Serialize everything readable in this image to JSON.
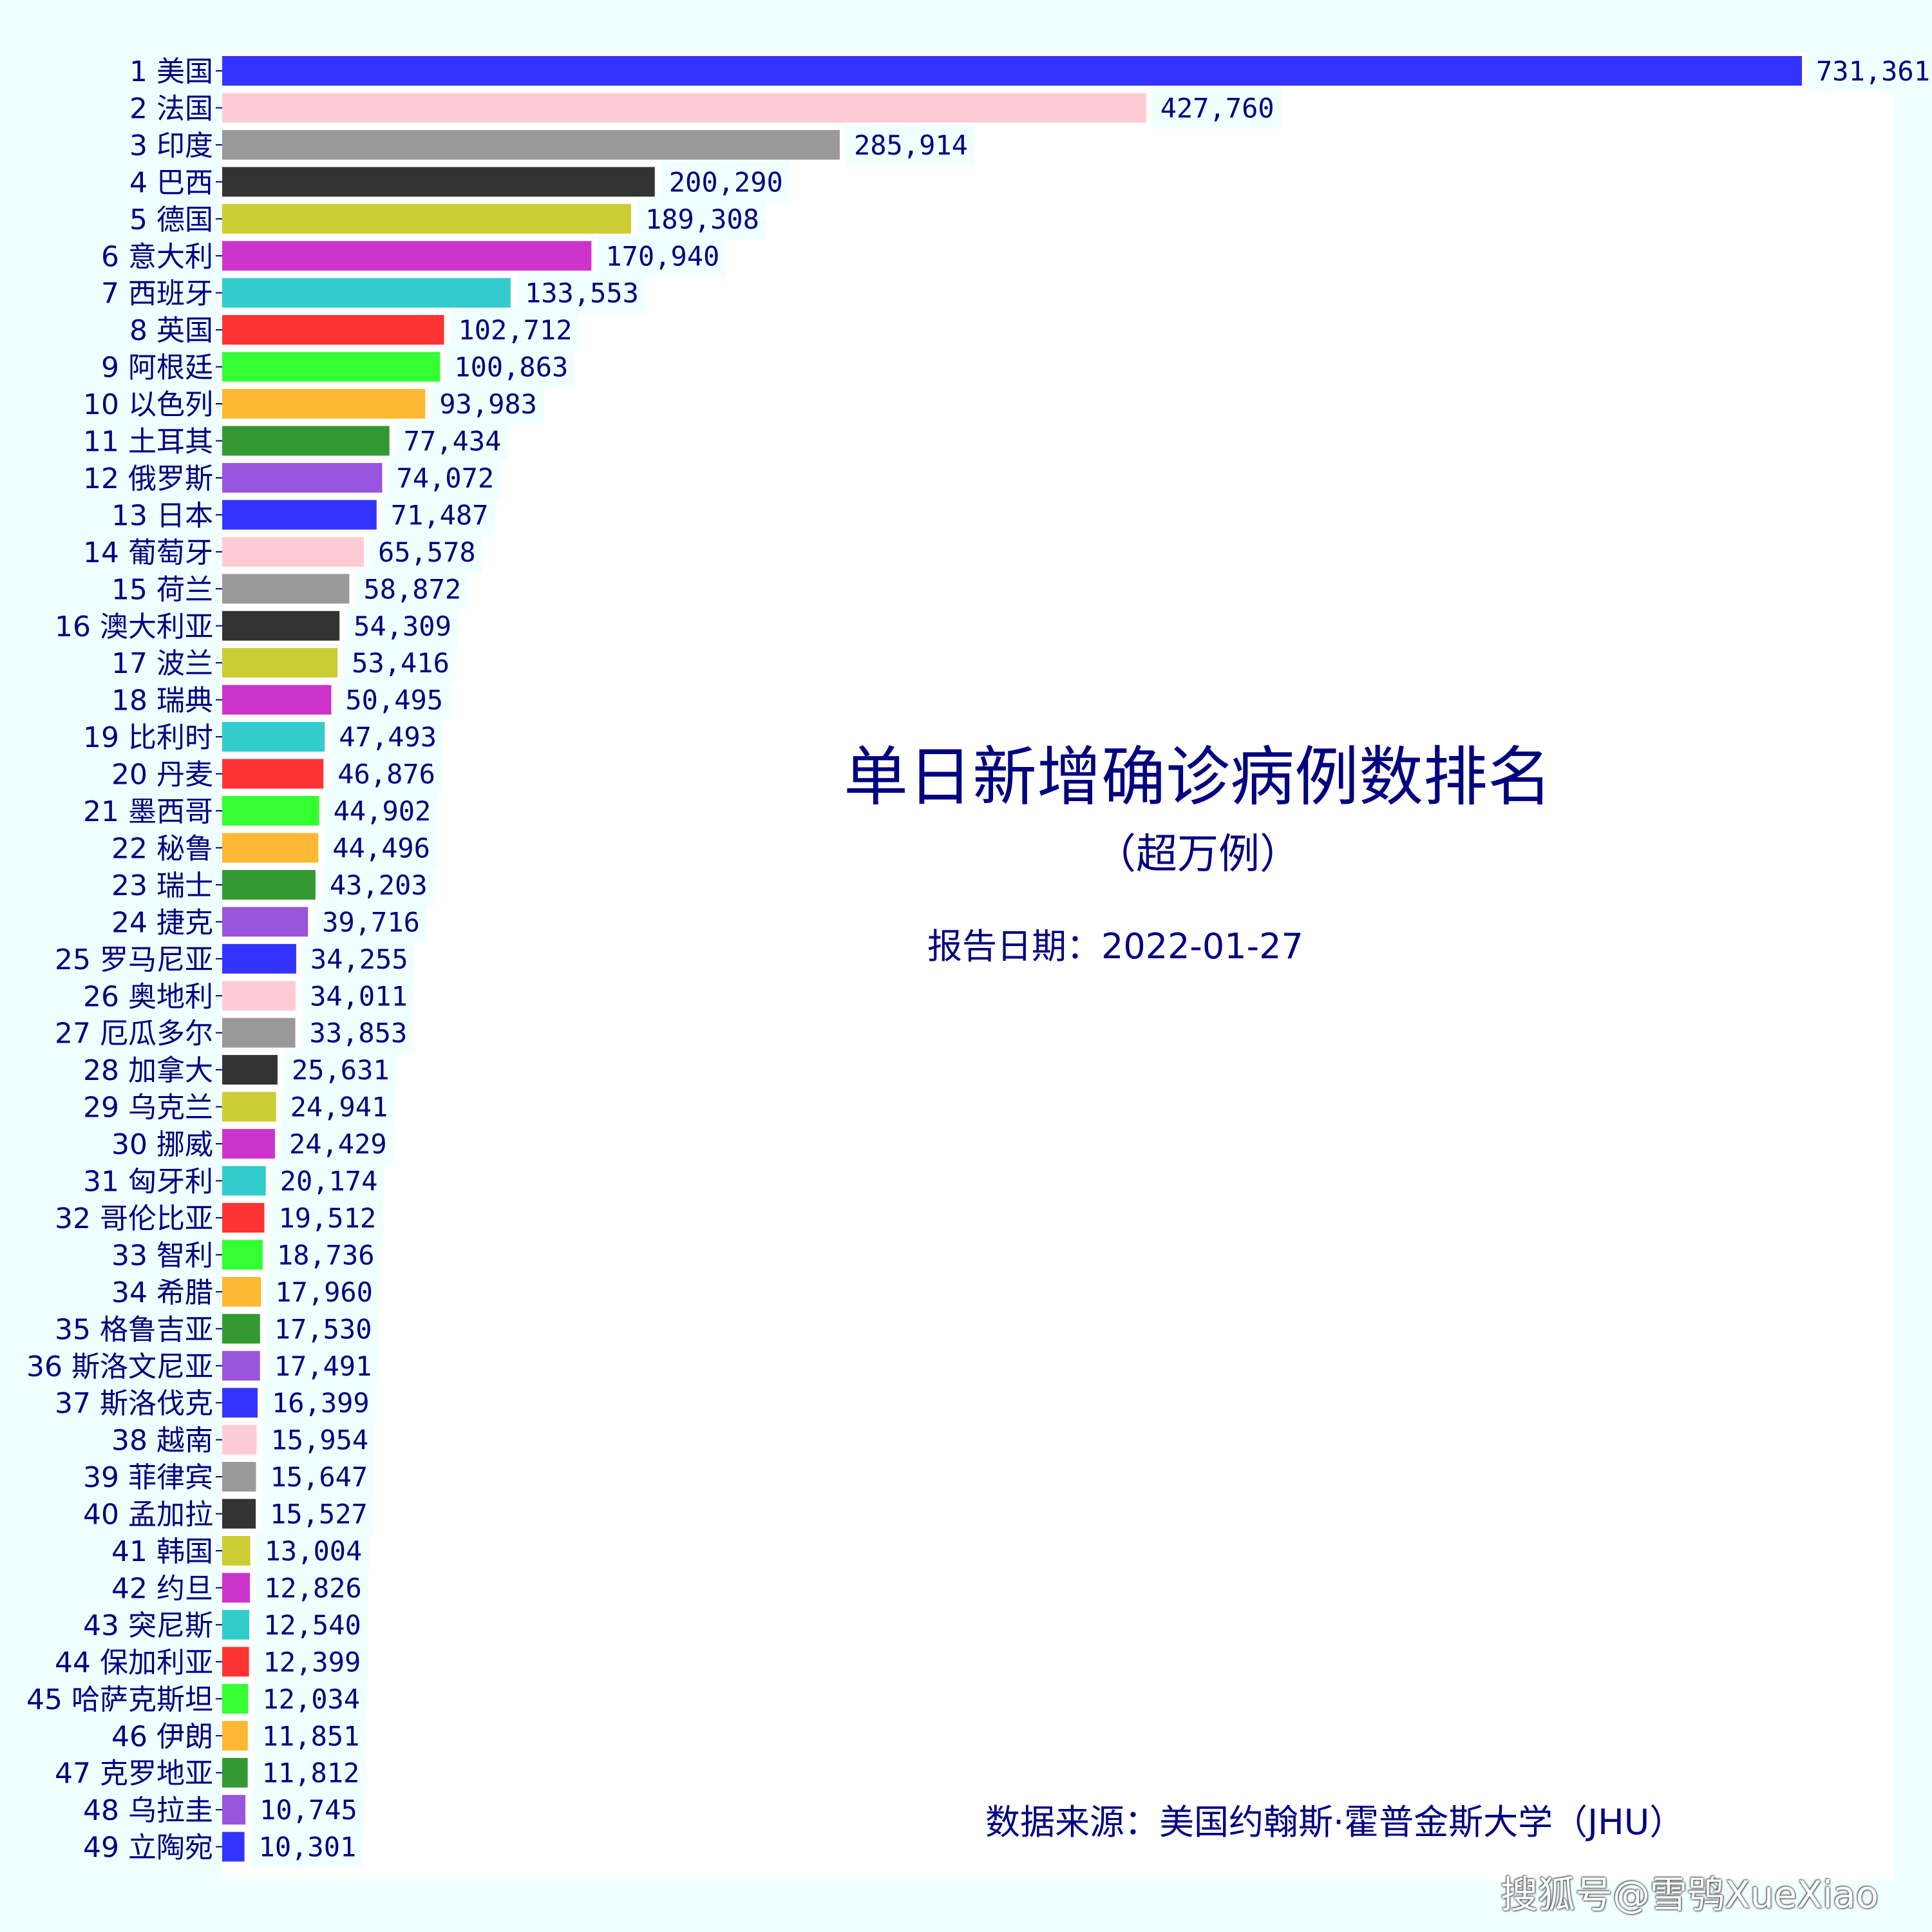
{
  "chart_data": {
    "type": "bar",
    "orientation": "horizontal",
    "title": "单日新增确诊病例数排名",
    "subtitle": "（超万例）",
    "report_date_label": "报告日期：",
    "report_date": "2022-01-27",
    "source": "数据来源：美国约翰斯·霍普金斯大学（JHU）",
    "watermark": "搜狐号@雪鸮XueXiao",
    "xlim": [
      0,
      731361
    ],
    "grid": false,
    "legend": "none",
    "palette": [
      "#3333ff",
      "#ffccd5",
      "#999999",
      "#333333",
      "#cccc33",
      "#cc33cc",
      "#33cccc",
      "#ff3333",
      "#33ff33",
      "#ffb833",
      "#339933",
      "#9955dd"
    ],
    "categories": [
      "1  美国",
      "2  法国",
      "3  印度",
      "4  巴西",
      "5  德国",
      "6  意大利",
      "7  西班牙",
      "8  英国",
      "9  阿根廷",
      "10  以色列",
      "11  土耳其",
      "12  俄罗斯",
      "13  日本",
      "14  葡萄牙",
      "15  荷兰",
      "16  澳大利亚",
      "17  波兰",
      "18  瑞典",
      "19  比利时",
      "20  丹麦",
      "21  墨西哥",
      "22  秘鲁",
      "23  瑞士",
      "24  捷克",
      "25  罗马尼亚",
      "26  奥地利",
      "27  厄瓜多尔",
      "28  加拿大",
      "29  乌克兰",
      "30  挪威",
      "31  匈牙利",
      "32  哥伦比亚",
      "33  智利",
      "34  希腊",
      "35  格鲁吉亚",
      "36  斯洛文尼亚",
      "37  斯洛伐克",
      "38  越南",
      "39  菲律宾",
      "40  孟加拉",
      "41  韩国",
      "42  约旦",
      "43  突尼斯",
      "44  保加利亚",
      "45  哈萨克斯坦",
      "46  伊朗",
      "47  克罗地亚",
      "48  乌拉圭",
      "49  立陶宛"
    ],
    "values": [
      731361,
      427760,
      285914,
      200290,
      189308,
      170940,
      133553,
      102712,
      100863,
      93983,
      77434,
      74072,
      71487,
      65578,
      58872,
      54309,
      53416,
      50495,
      47493,
      46876,
      44902,
      44496,
      43203,
      39716,
      34255,
      34011,
      33853,
      25631,
      24941,
      24429,
      20174,
      19512,
      18736,
      17960,
      17530,
      17491,
      16399,
      15954,
      15647,
      15527,
      13004,
      12826,
      12540,
      12399,
      12034,
      11851,
      11812,
      10745,
      10301
    ],
    "value_labels": [
      "731,361",
      "427,760",
      "285,914",
      "200,290",
      "189,308",
      "170,940",
      "133,553",
      "102,712",
      "100,863",
      "93,983",
      "77,434",
      "74,072",
      "71,487",
      "65,578",
      "58,872",
      "54,309",
      "53,416",
      "50,495",
      "47,493",
      "46,876",
      "44,902",
      "44,496",
      "43,203",
      "39,716",
      "34,255",
      "34,011",
      "33,853",
      "25,631",
      "24,941",
      "24,429",
      "20,174",
      "19,512",
      "18,736",
      "17,960",
      "17,530",
      "17,491",
      "16,399",
      "15,954",
      "15,647",
      "15,527",
      "13,004",
      "12,826",
      "12,540",
      "12,399",
      "12,034",
      "11,851",
      "11,812",
      "10,745",
      "10,301"
    ]
  }
}
